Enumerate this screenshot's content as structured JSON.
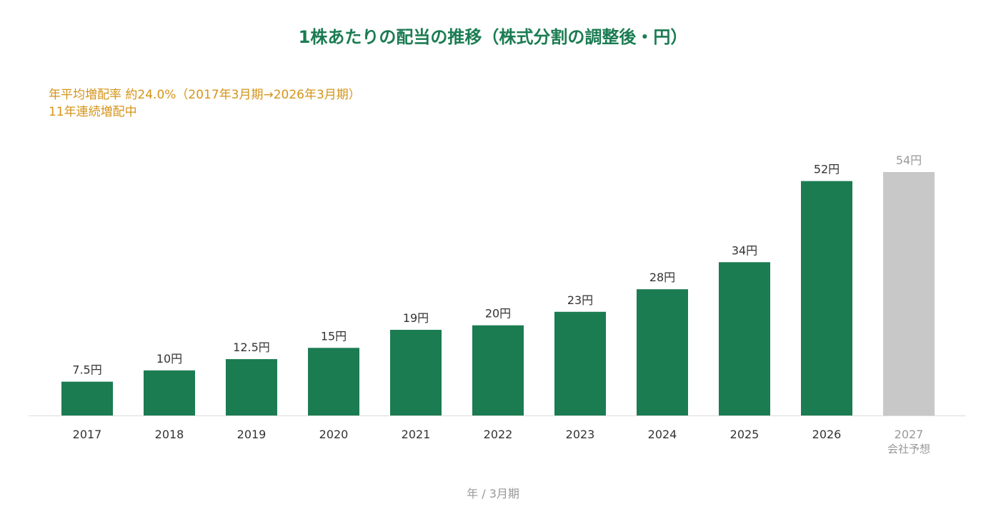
{
  "chart_data": {
    "type": "bar",
    "title": "1株あたりの配当の推移（株式分割の調整後・円）",
    "annotations": [
      "年平均増配率 約24.0%（2017年3月期→2026年3月期）",
      "11年連続増配中"
    ],
    "xlabel": "年 / 3月期",
    "ylabel": "",
    "categories": [
      "2017",
      "2018",
      "2019",
      "2020",
      "2021",
      "2022",
      "2023",
      "2024",
      "2025",
      "2026",
      "2027"
    ],
    "category_sublabels": [
      "",
      "",
      "",
      "",
      "",
      "",
      "",
      "",
      "",
      "",
      "会社予想"
    ],
    "values": [
      7.5,
      10,
      12.5,
      15,
      19,
      20,
      23,
      28,
      34,
      52,
      54
    ],
    "value_labels": [
      "7.5円",
      "10円",
      "12.5円",
      "15円",
      "19円",
      "20円",
      "23円",
      "28円",
      "34円",
      "52円",
      "54円"
    ],
    "forecast_flags": [
      false,
      false,
      false,
      false,
      false,
      false,
      false,
      false,
      false,
      false,
      true
    ],
    "ylim": [
      0,
      54
    ],
    "grid": false,
    "colors": {
      "actual": "#1b7c52",
      "forecast": "#c8c8c8",
      "title": "#1b7c52",
      "annotation": "#d4941a",
      "label": "#333333",
      "forecast_label": "#999999",
      "axis": "#dddddd"
    }
  }
}
